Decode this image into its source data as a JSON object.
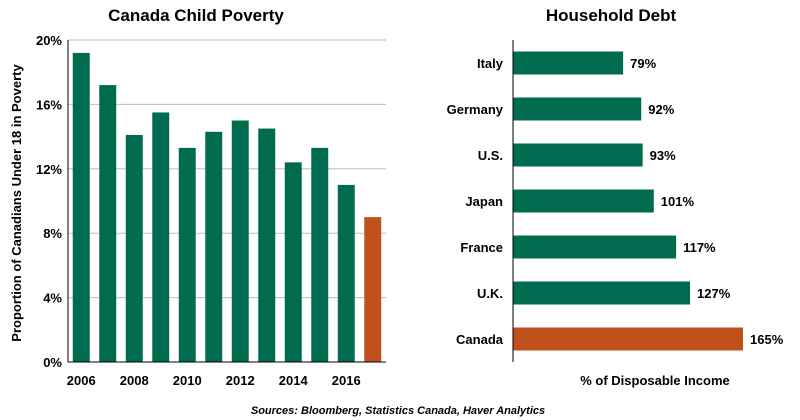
{
  "chart_data": [
    {
      "type": "bar",
      "title": "Canada Child Poverty",
      "ylabel": "Proportion of Canadians Under 18 in Poverty",
      "xlabel": "",
      "x_tick_labels": [
        "2006",
        "2008",
        "2010",
        "2012",
        "2014",
        "2016"
      ],
      "y_tick_labels": [
        "0%",
        "4%",
        "8%",
        "12%",
        "16%",
        "20%"
      ],
      "categories": [
        2006,
        2007,
        2008,
        2009,
        2010,
        2011,
        2012,
        2013,
        2014,
        2015,
        2016,
        2017
      ],
      "values": [
        19.2,
        17.2,
        14.1,
        15.5,
        13.3,
        14.3,
        15.0,
        14.5,
        12.4,
        13.3,
        11.0,
        9.0
      ],
      "ylim": [
        0,
        20
      ],
      "grid": true,
      "colors": {
        "default": "#006B4F",
        "highlight": "#C0501C"
      },
      "highlight_index": 11
    },
    {
      "type": "bar",
      "orientation": "horizontal",
      "title": "Household Debt",
      "xlabel": "% of Disposable Income",
      "ylabel": "",
      "categories": [
        "Italy",
        "Germany",
        "U.S.",
        "Japan",
        "France",
        "U.K.",
        "Canada"
      ],
      "values": [
        79,
        92,
        93,
        101,
        117,
        127,
        165
      ],
      "data_labels": [
        "79%",
        "92%",
        "93%",
        "101%",
        "117%",
        "127%",
        "165%"
      ],
      "grid": false,
      "colors": {
        "default": "#006B4F",
        "highlight": "#C0501C"
      },
      "highlight_index": 6
    }
  ],
  "source": "Sources: Bloomberg, Statistics Canada, Haver Analytics"
}
